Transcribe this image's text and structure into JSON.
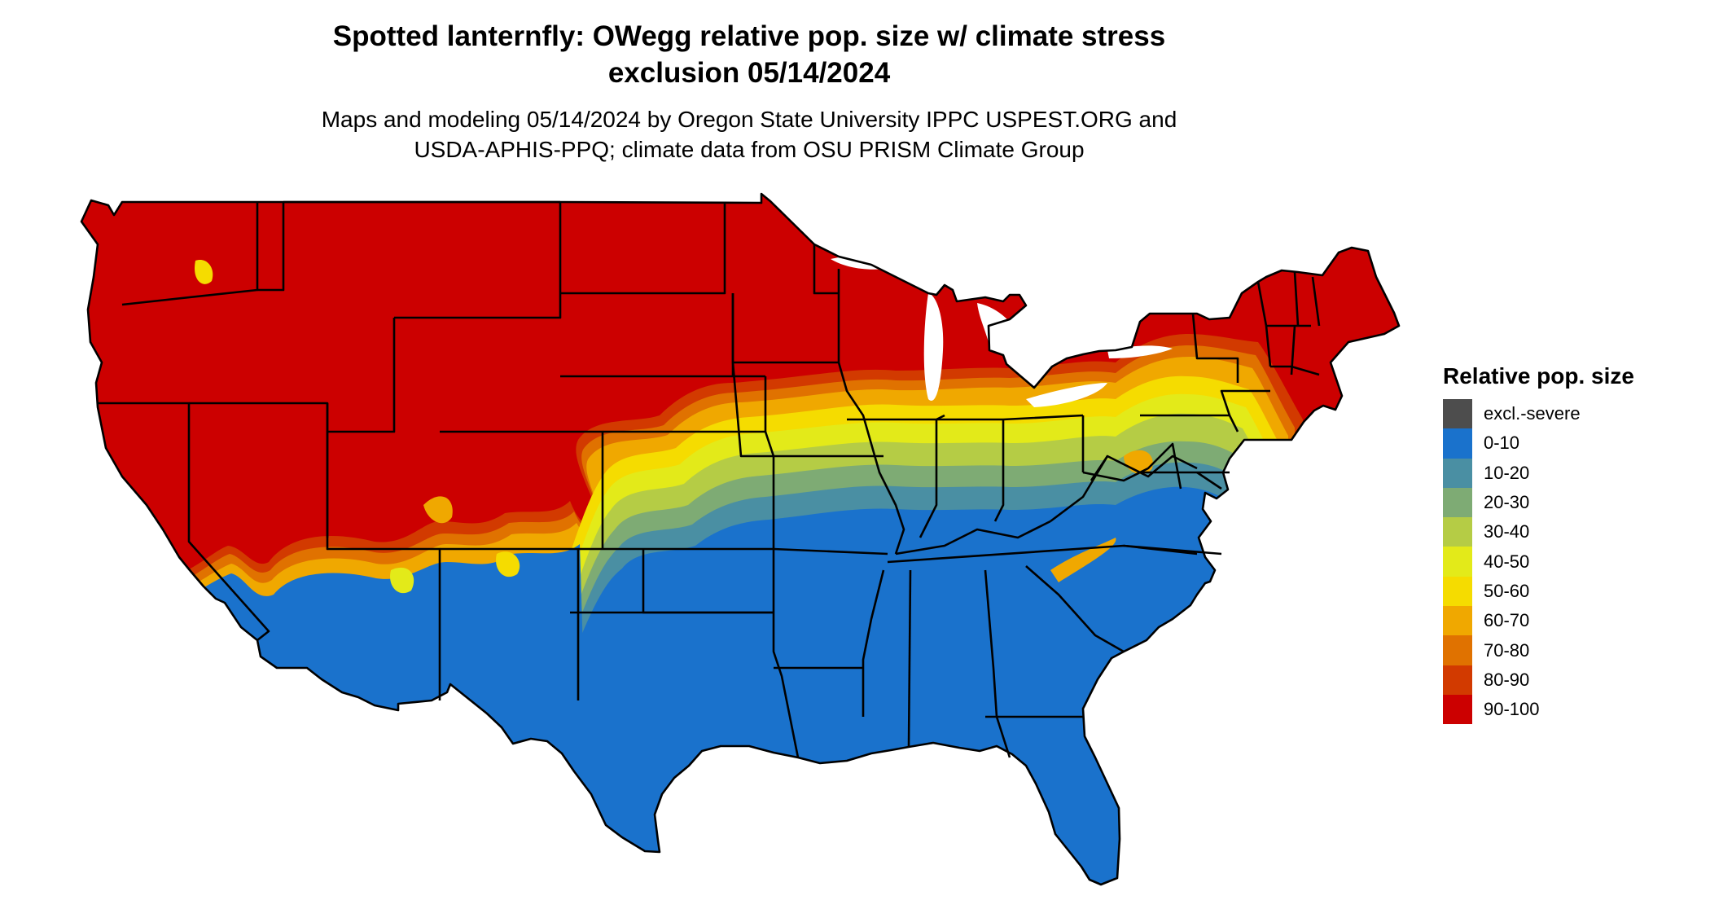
{
  "title": {
    "line1": "Spotted lanternfly: OWegg relative pop. size w/ climate stress",
    "line2": "exclusion 05/14/2024"
  },
  "subtitle": {
    "line1": "Maps and modeling 05/14/2024 by Oregon State University IPPC USPEST.ORG and",
    "line2": "USDA-APHIS-PPQ; climate data from OSU PRISM Climate Group"
  },
  "legend": {
    "title": "Relative pop. size",
    "items": [
      {
        "label": "excl.-severe",
        "color": "#4d4d4d"
      },
      {
        "label": "0-10",
        "color": "#1a72cc"
      },
      {
        "label": "10-20",
        "color": "#4a8fa3"
      },
      {
        "label": "20-30",
        "color": "#7eab74"
      },
      {
        "label": "30-40",
        "color": "#b5cc45"
      },
      {
        "label": "40-50",
        "color": "#e3ea19"
      },
      {
        "label": "50-60",
        "color": "#f5dc00"
      },
      {
        "label": "60-70",
        "color": "#f0a800"
      },
      {
        "label": "70-80",
        "color": "#e07200"
      },
      {
        "label": "80-90",
        "color": "#d23a00"
      },
      {
        "label": "90-100",
        "color": "#cc0000"
      }
    ]
  },
  "map": {
    "region": "contiguous-united-states",
    "boundary_color": "#000000",
    "background_color": "#ffffff"
  }
}
